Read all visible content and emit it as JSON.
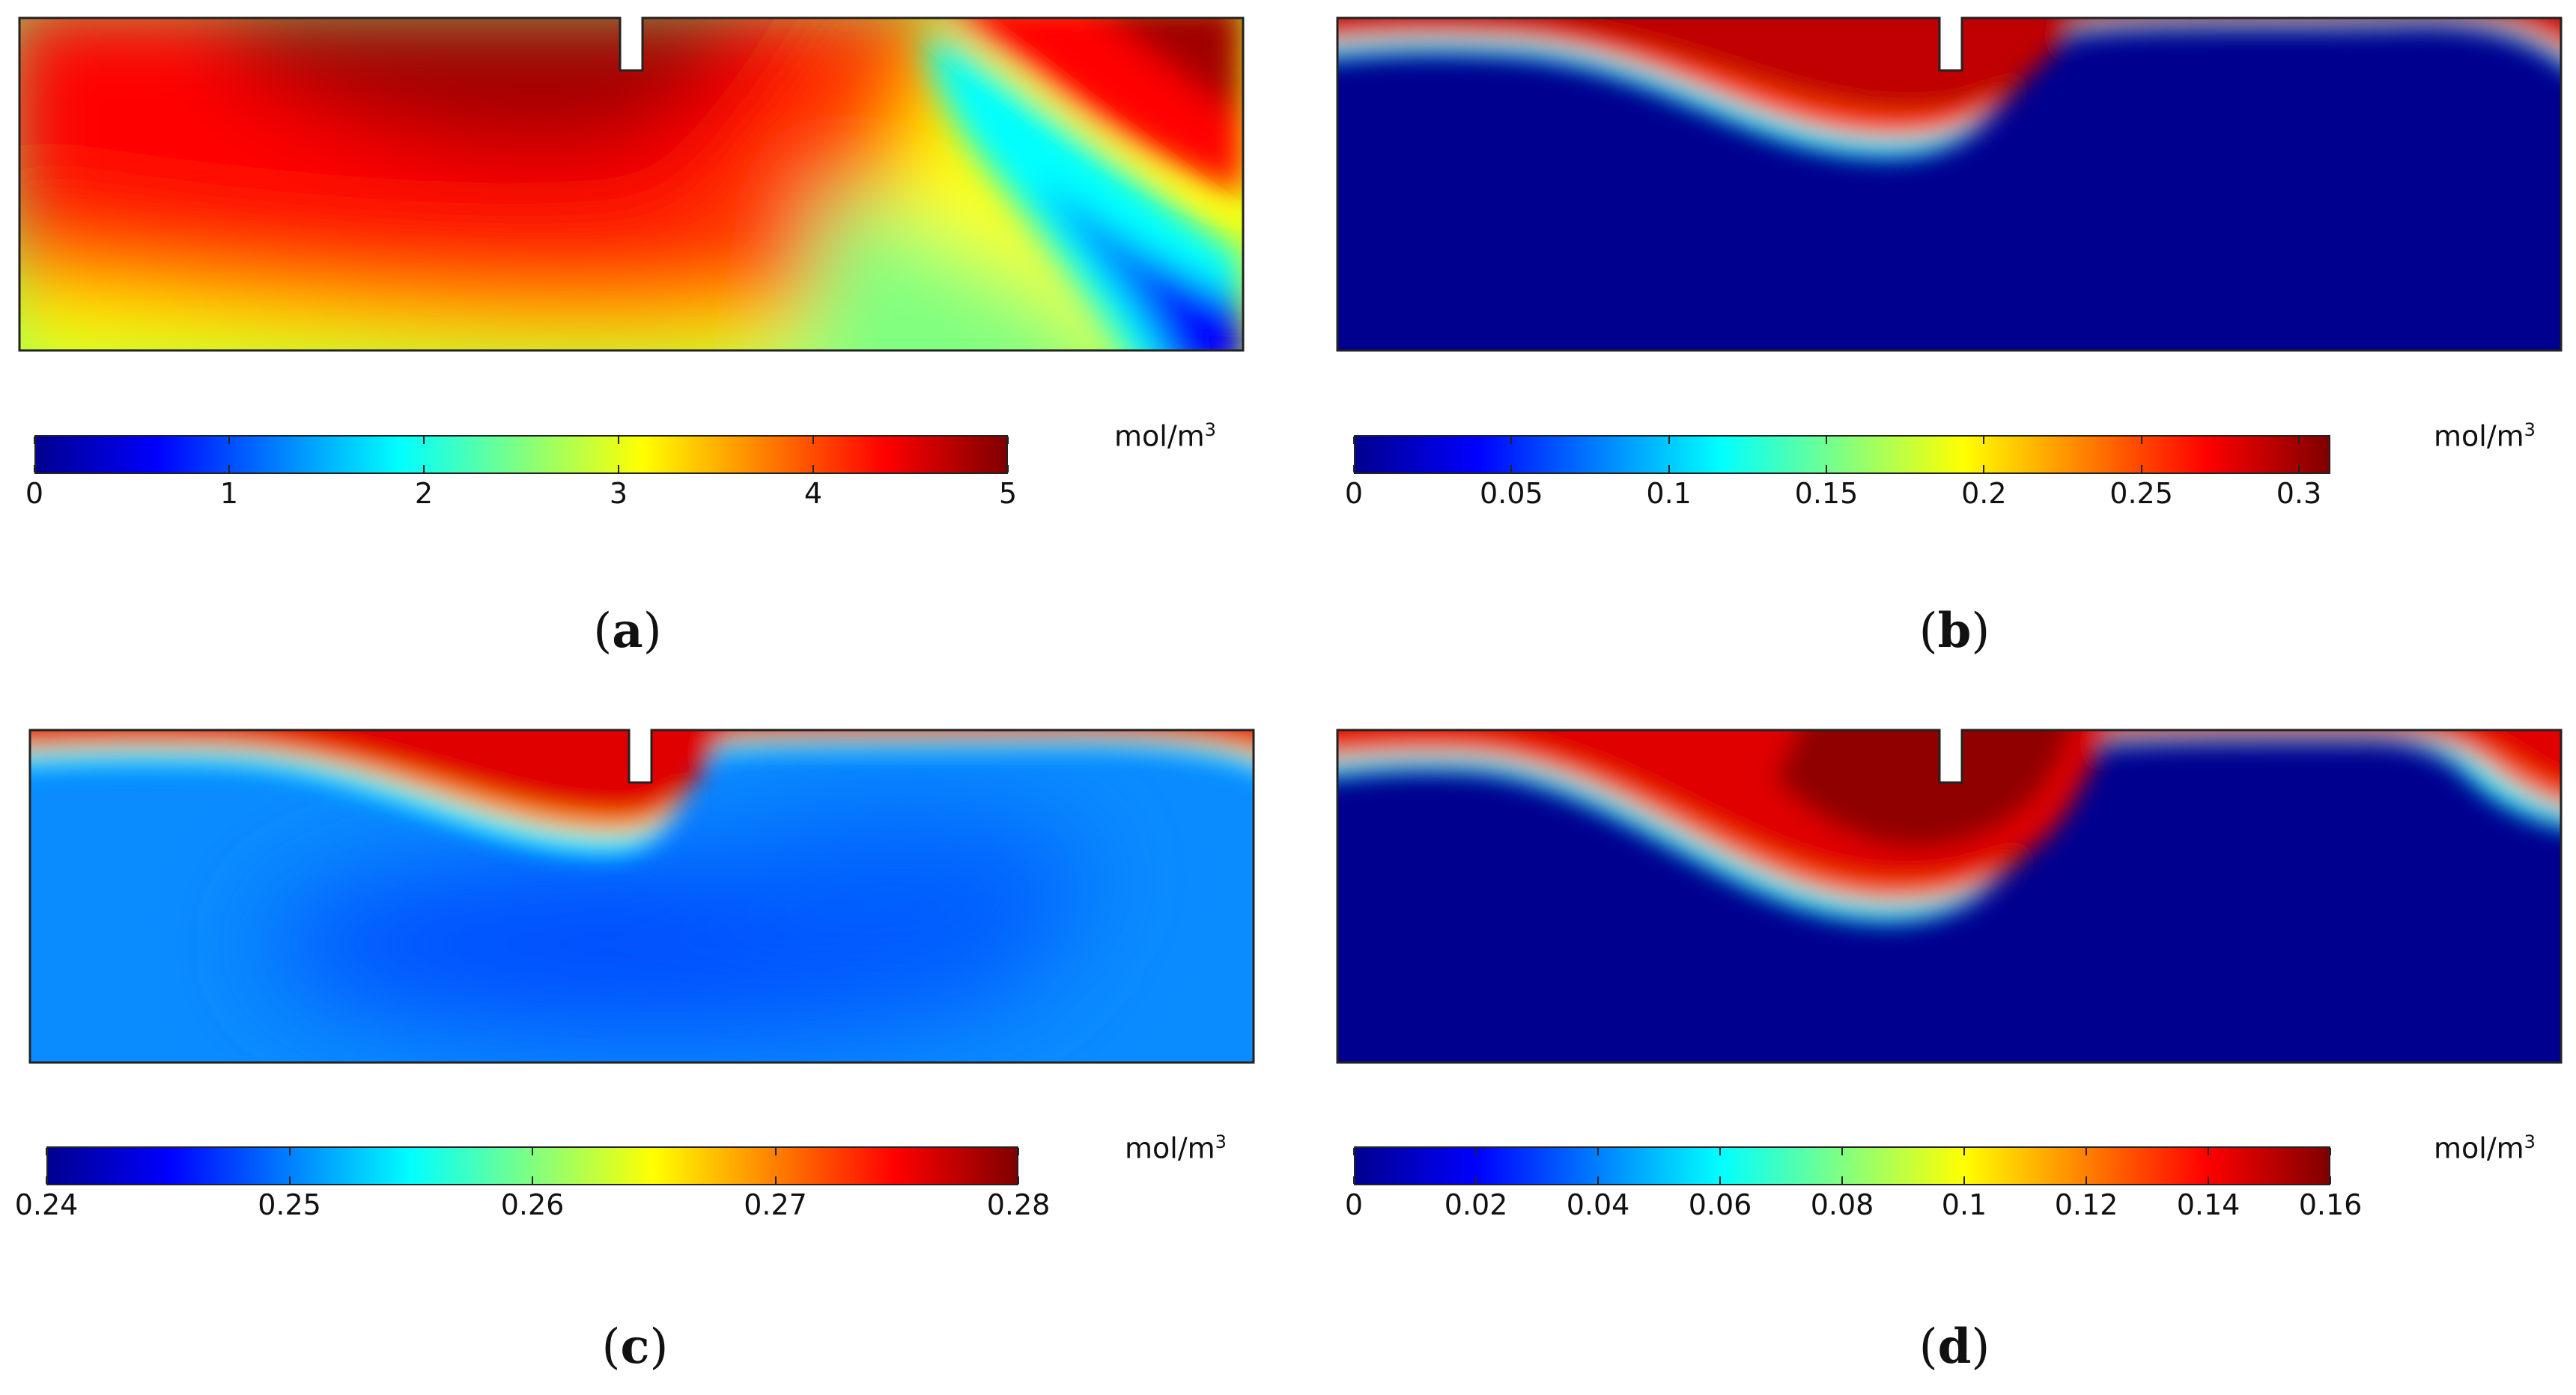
{
  "colormap": [
    "#00008f",
    "#0000ff",
    "#0080ff",
    "#00ffff",
    "#80ff80",
    "#ffff00",
    "#ff8000",
    "#ff0000",
    "#800000"
  ],
  "chart_data": [
    {
      "type": "heatmap",
      "label": "a",
      "unit": "mol/m",
      "unit_exponent": "3",
      "range": [
        0,
        5
      ],
      "ticks": [
        "0",
        "1",
        "2",
        "3",
        "4",
        "5"
      ],
      "tick_values": [
        0,
        1,
        2,
        3,
        4,
        5
      ]
    },
    {
      "type": "heatmap",
      "label": "b",
      "unit": "mol/m",
      "unit_exponent": "3",
      "range": [
        0,
        0.31
      ],
      "ticks": [
        "0",
        "0.05",
        "0.1",
        "0.15",
        "0.2",
        "0.25",
        "0.3"
      ],
      "tick_values": [
        0,
        0.05,
        0.1,
        0.15,
        0.2,
        0.25,
        0.3
      ]
    },
    {
      "type": "heatmap",
      "label": "c",
      "unit": "mol/m",
      "unit_exponent": "3",
      "range": [
        0.24,
        0.28
      ],
      "ticks": [
        "0.24",
        "0.25",
        "0.26",
        "0.27",
        "0.28"
      ],
      "tick_values": [
        0.24,
        0.25,
        0.26,
        0.27,
        0.28
      ]
    },
    {
      "type": "heatmap",
      "label": "d",
      "unit": "mol/m",
      "unit_exponent": "3",
      "range": [
        0,
        0.16
      ],
      "ticks": [
        "0",
        "0.02",
        "0.04",
        "0.06",
        "0.08",
        "0.1",
        "0.12",
        "0.14",
        "0.16"
      ],
      "tick_values": [
        0,
        0.02,
        0.04,
        0.06,
        0.08,
        0.1,
        0.12,
        0.14,
        0.16
      ]
    }
  ]
}
